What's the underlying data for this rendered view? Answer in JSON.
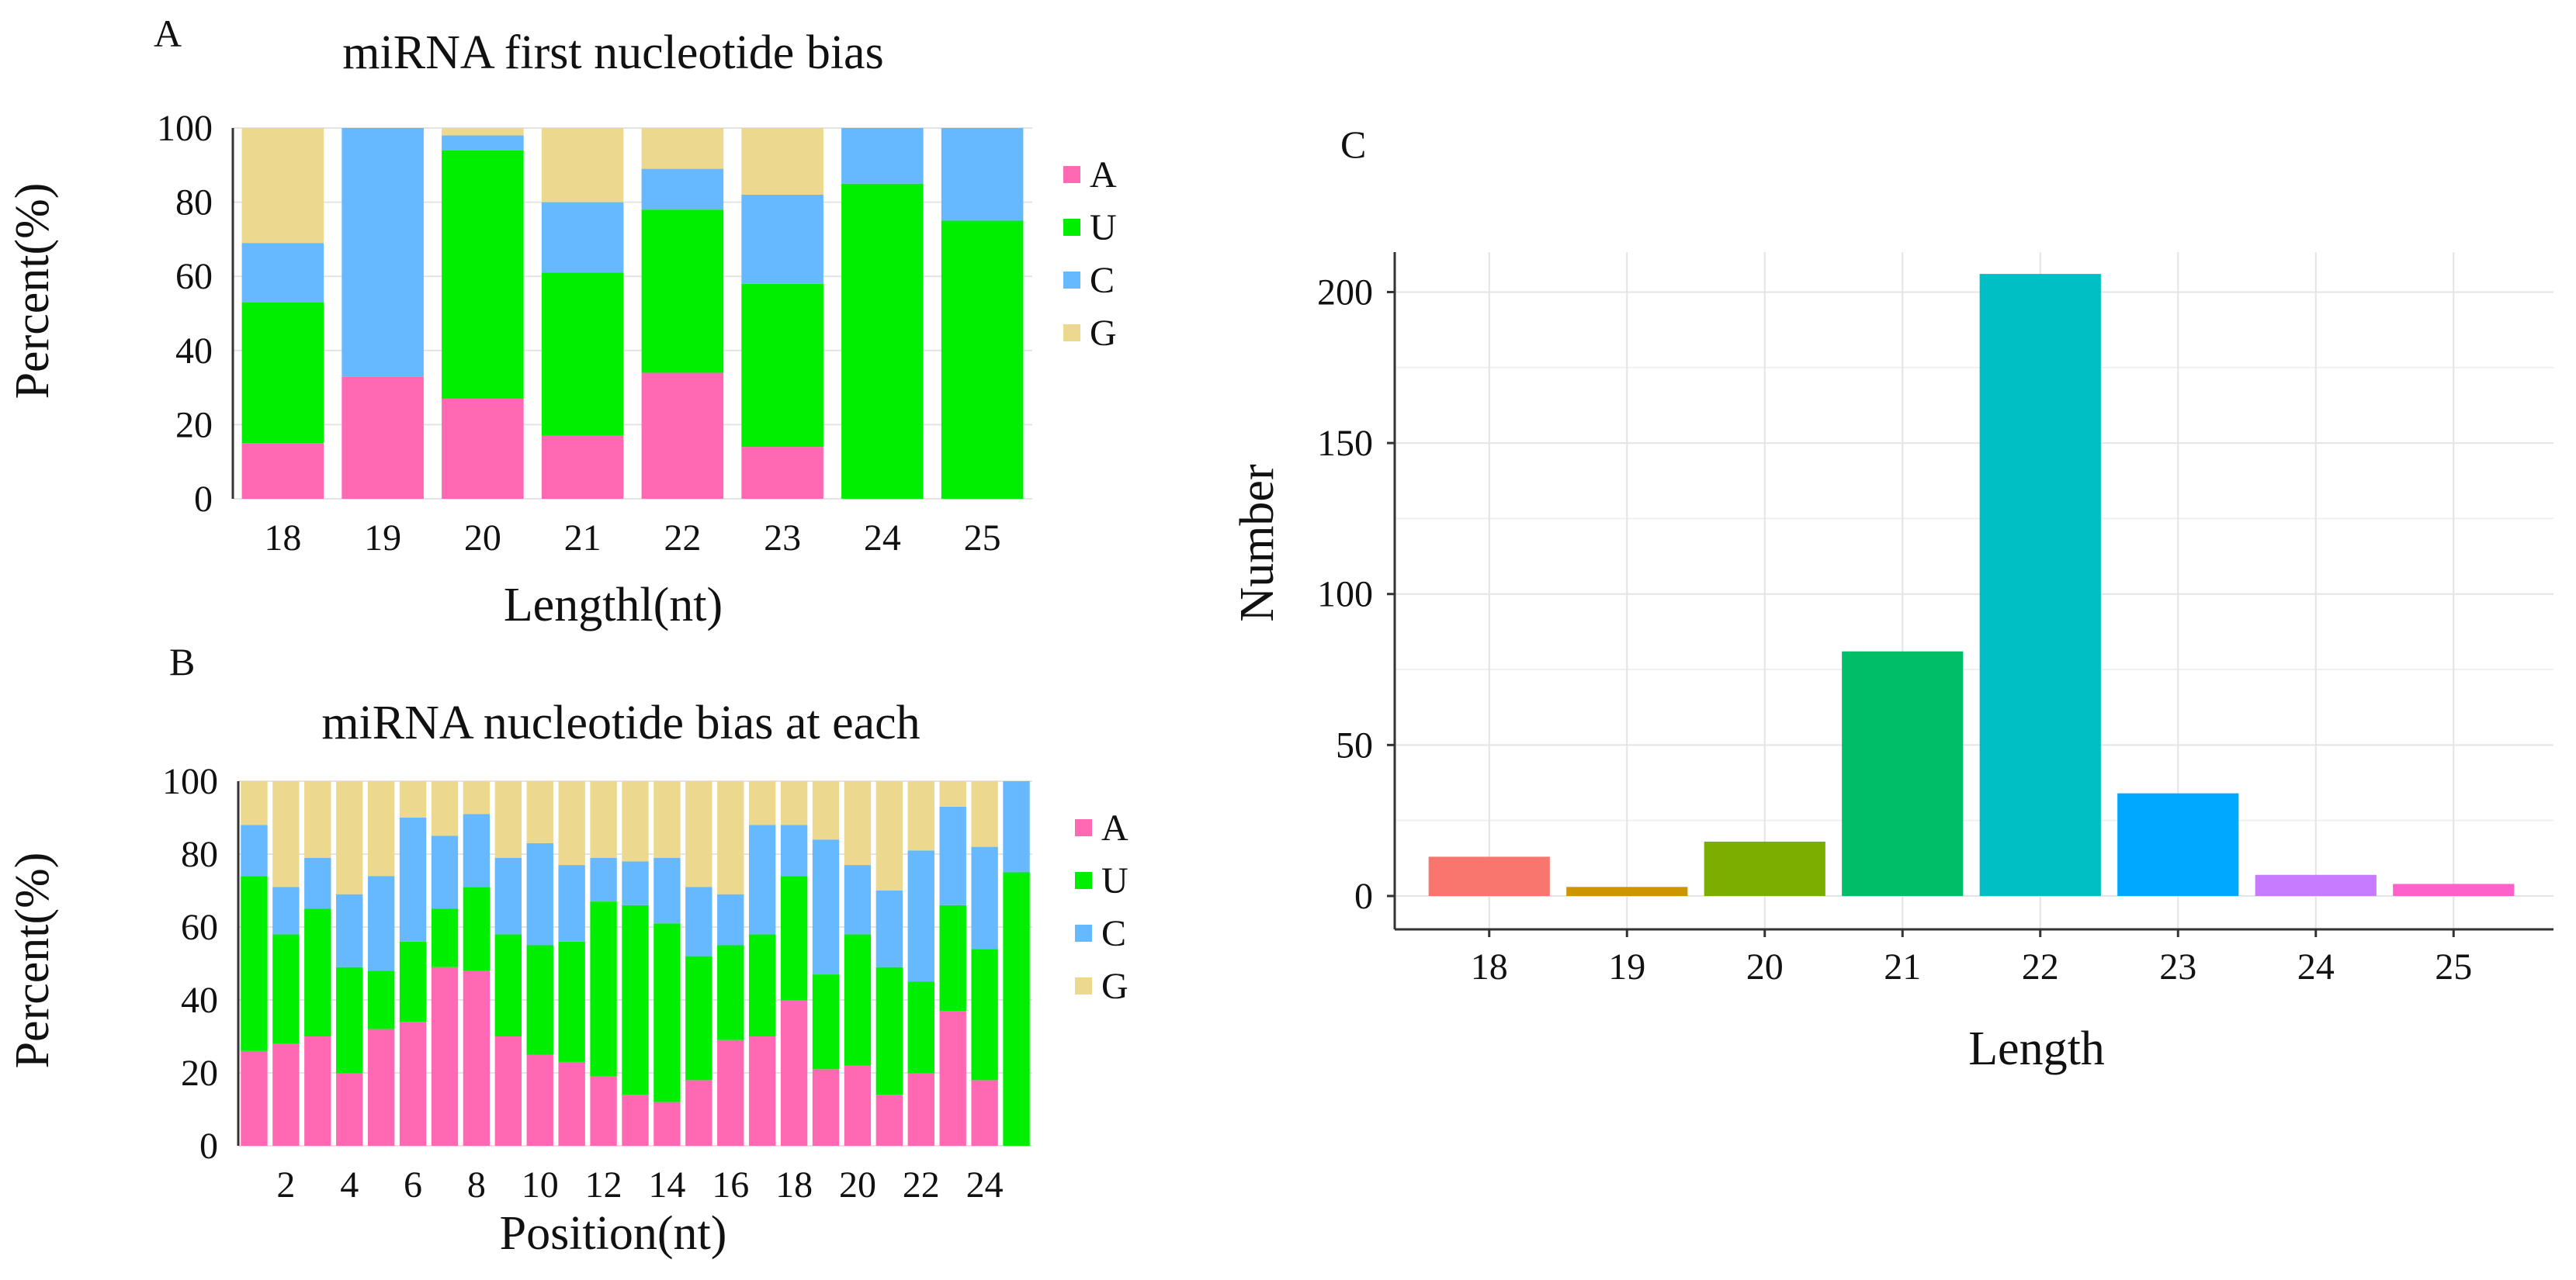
{
  "panels": {
    "a": {
      "letter": "A"
    },
    "b": {
      "letter": "B"
    },
    "c": {
      "letter": "C"
    }
  },
  "colors": {
    "A": "#ff69b4",
    "U": "#00ee00",
    "C": "#66b8ff",
    "G": "#ecd98e"
  },
  "chart_data": [
    {
      "id": "panel-a",
      "type": "bar",
      "stacked": true,
      "title": "miRNA first nucleotide bias",
      "xlabel": "Lengthl(nt)",
      "ylabel": "Percent(%)",
      "ylim": [
        0,
        100
      ],
      "yticks": [
        "0",
        "20",
        "40",
        "60",
        "80",
        "100"
      ],
      "categories": [
        "18",
        "19",
        "20",
        "21",
        "22",
        "23",
        "24",
        "25"
      ],
      "legend": [
        "A",
        "U",
        "C",
        "G"
      ],
      "series": [
        {
          "name": "A",
          "values": [
            15,
            33,
            27,
            17,
            34,
            14,
            0,
            0
          ]
        },
        {
          "name": "U",
          "values": [
            38,
            0,
            67,
            44,
            44,
            44,
            85,
            75
          ]
        },
        {
          "name": "C",
          "values": [
            16,
            67,
            4,
            19,
            11,
            24,
            15,
            25
          ]
        },
        {
          "name": "G",
          "values": [
            31,
            0,
            2,
            20,
            11,
            18,
            0,
            0
          ]
        }
      ]
    },
    {
      "id": "panel-b",
      "type": "bar",
      "stacked": true,
      "title": "miRNA nucleotide bias at each",
      "xlabel": "Position(nt)",
      "ylabel": "Percent(%)",
      "ylim": [
        0,
        100
      ],
      "yticks": [
        "0",
        "20",
        "40",
        "60",
        "80",
        "100"
      ],
      "categories": [
        "1",
        "2",
        "3",
        "4",
        "5",
        "6",
        "7",
        "8",
        "9",
        "10",
        "11",
        "12",
        "13",
        "14",
        "15",
        "16",
        "17",
        "18",
        "19",
        "20",
        "21",
        "22",
        "23",
        "24",
        "25"
      ],
      "xticklabels": [
        "",
        "2",
        "",
        "4",
        "",
        "6",
        "",
        "8",
        "",
        "10",
        "",
        "12",
        "",
        "14",
        "",
        "16",
        "",
        "18",
        "",
        "20",
        "",
        "22",
        "",
        "24",
        ""
      ],
      "legend": [
        "A",
        "U",
        "C",
        "G"
      ],
      "series": [
        {
          "name": "A",
          "values": [
            26,
            28,
            30,
            20,
            32,
            34,
            49,
            48,
            30,
            25,
            23,
            19,
            14,
            12,
            18,
            29,
            30,
            40,
            21,
            22,
            14,
            20,
            37,
            18,
            0
          ]
        },
        {
          "name": "U",
          "values": [
            48,
            30,
            35,
            29,
            16,
            22,
            16,
            23,
            28,
            30,
            33,
            48,
            52,
            49,
            34,
            26,
            28,
            34,
            26,
            36,
            35,
            25,
            29,
            36,
            75
          ]
        },
        {
          "name": "C",
          "values": [
            14,
            13,
            14,
            20,
            26,
            34,
            20,
            20,
            21,
            28,
            21,
            12,
            12,
            18,
            19,
            14,
            30,
            14,
            37,
            19,
            21,
            36,
            27,
            28,
            25
          ]
        },
        {
          "name": "G",
          "values": [
            12,
            29,
            21,
            31,
            26,
            10,
            15,
            9,
            21,
            17,
            23,
            21,
            22,
            21,
            29,
            31,
            12,
            12,
            16,
            23,
            30,
            19,
            7,
            18,
            0
          ]
        }
      ]
    },
    {
      "id": "panel-c",
      "type": "bar",
      "title": "",
      "xlabel": "Length",
      "ylabel": "Number",
      "ylim": [
        0,
        205
      ],
      "yticks": [
        0,
        50,
        100,
        150,
        200
      ],
      "categories": [
        "18",
        "19",
        "20",
        "21",
        "22",
        "23",
        "24",
        "25"
      ],
      "values": [
        13,
        3,
        18,
        81,
        206,
        34,
        7,
        4
      ],
      "colors": [
        "#f8766d",
        "#cd9600",
        "#7cae00",
        "#00be67",
        "#00bfc4",
        "#00a9ff",
        "#c77cff",
        "#ff61cc"
      ]
    }
  ]
}
